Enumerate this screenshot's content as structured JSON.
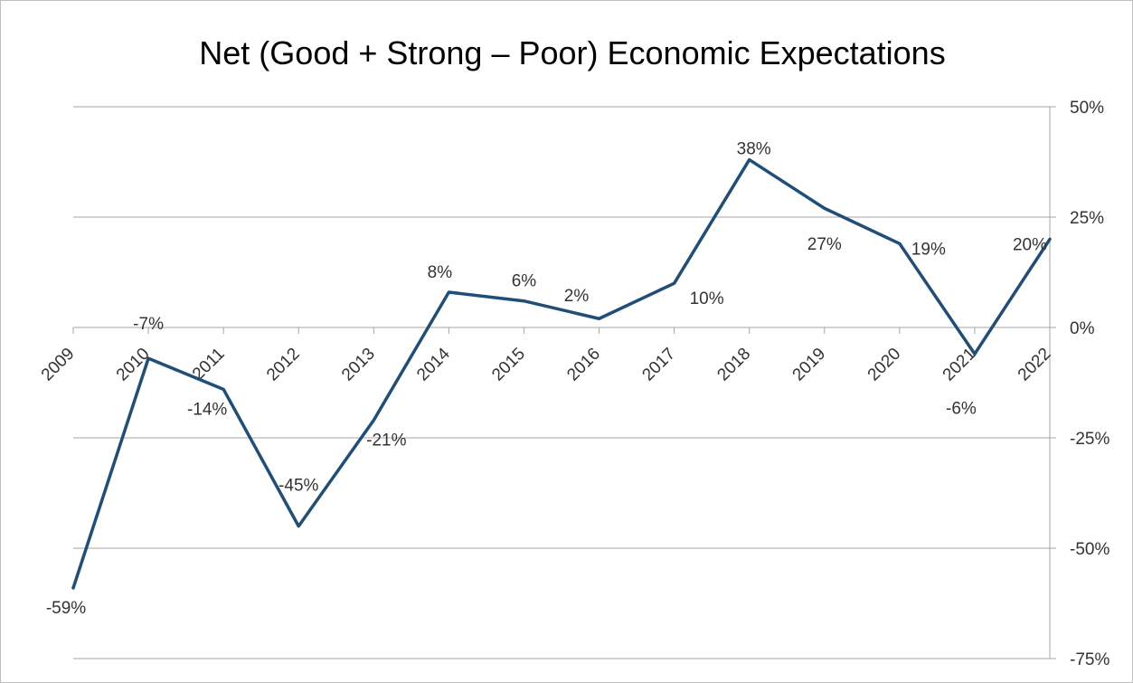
{
  "chart_data": {
    "type": "line",
    "title": "Net (Good + Strong – Poor) Economic Expectations",
    "xlabel": "",
    "ylabel": "",
    "categories": [
      "2009",
      "2010",
      "2011",
      "2012",
      "2013",
      "2014",
      "2015",
      "2016",
      "2017",
      "2018",
      "2019",
      "2020",
      "2021",
      "2022"
    ],
    "series": [
      {
        "values": [
          -59,
          -7,
          -14,
          -45,
          -21,
          8,
          6,
          2,
          10,
          38,
          27,
          19,
          -6,
          20
        ],
        "labels": [
          "-59%",
          "-7%",
          "-14%",
          "-45%",
          "-21%",
          "8%",
          "6%",
          "2%",
          "10%",
          "38%",
          "27%",
          "19%",
          "-6%",
          "20%"
        ],
        "color": "#1f4e79"
      }
    ],
    "ylim": [
      -75,
      50
    ],
    "y_ticks": [
      50,
      25,
      0,
      -25,
      -50,
      -75
    ],
    "y_tick_labels": [
      "50%",
      "25%",
      "0%",
      "-25%",
      "-50%",
      "-75%"
    ],
    "y_axis_side": "right",
    "grid": true,
    "legend": "none"
  }
}
